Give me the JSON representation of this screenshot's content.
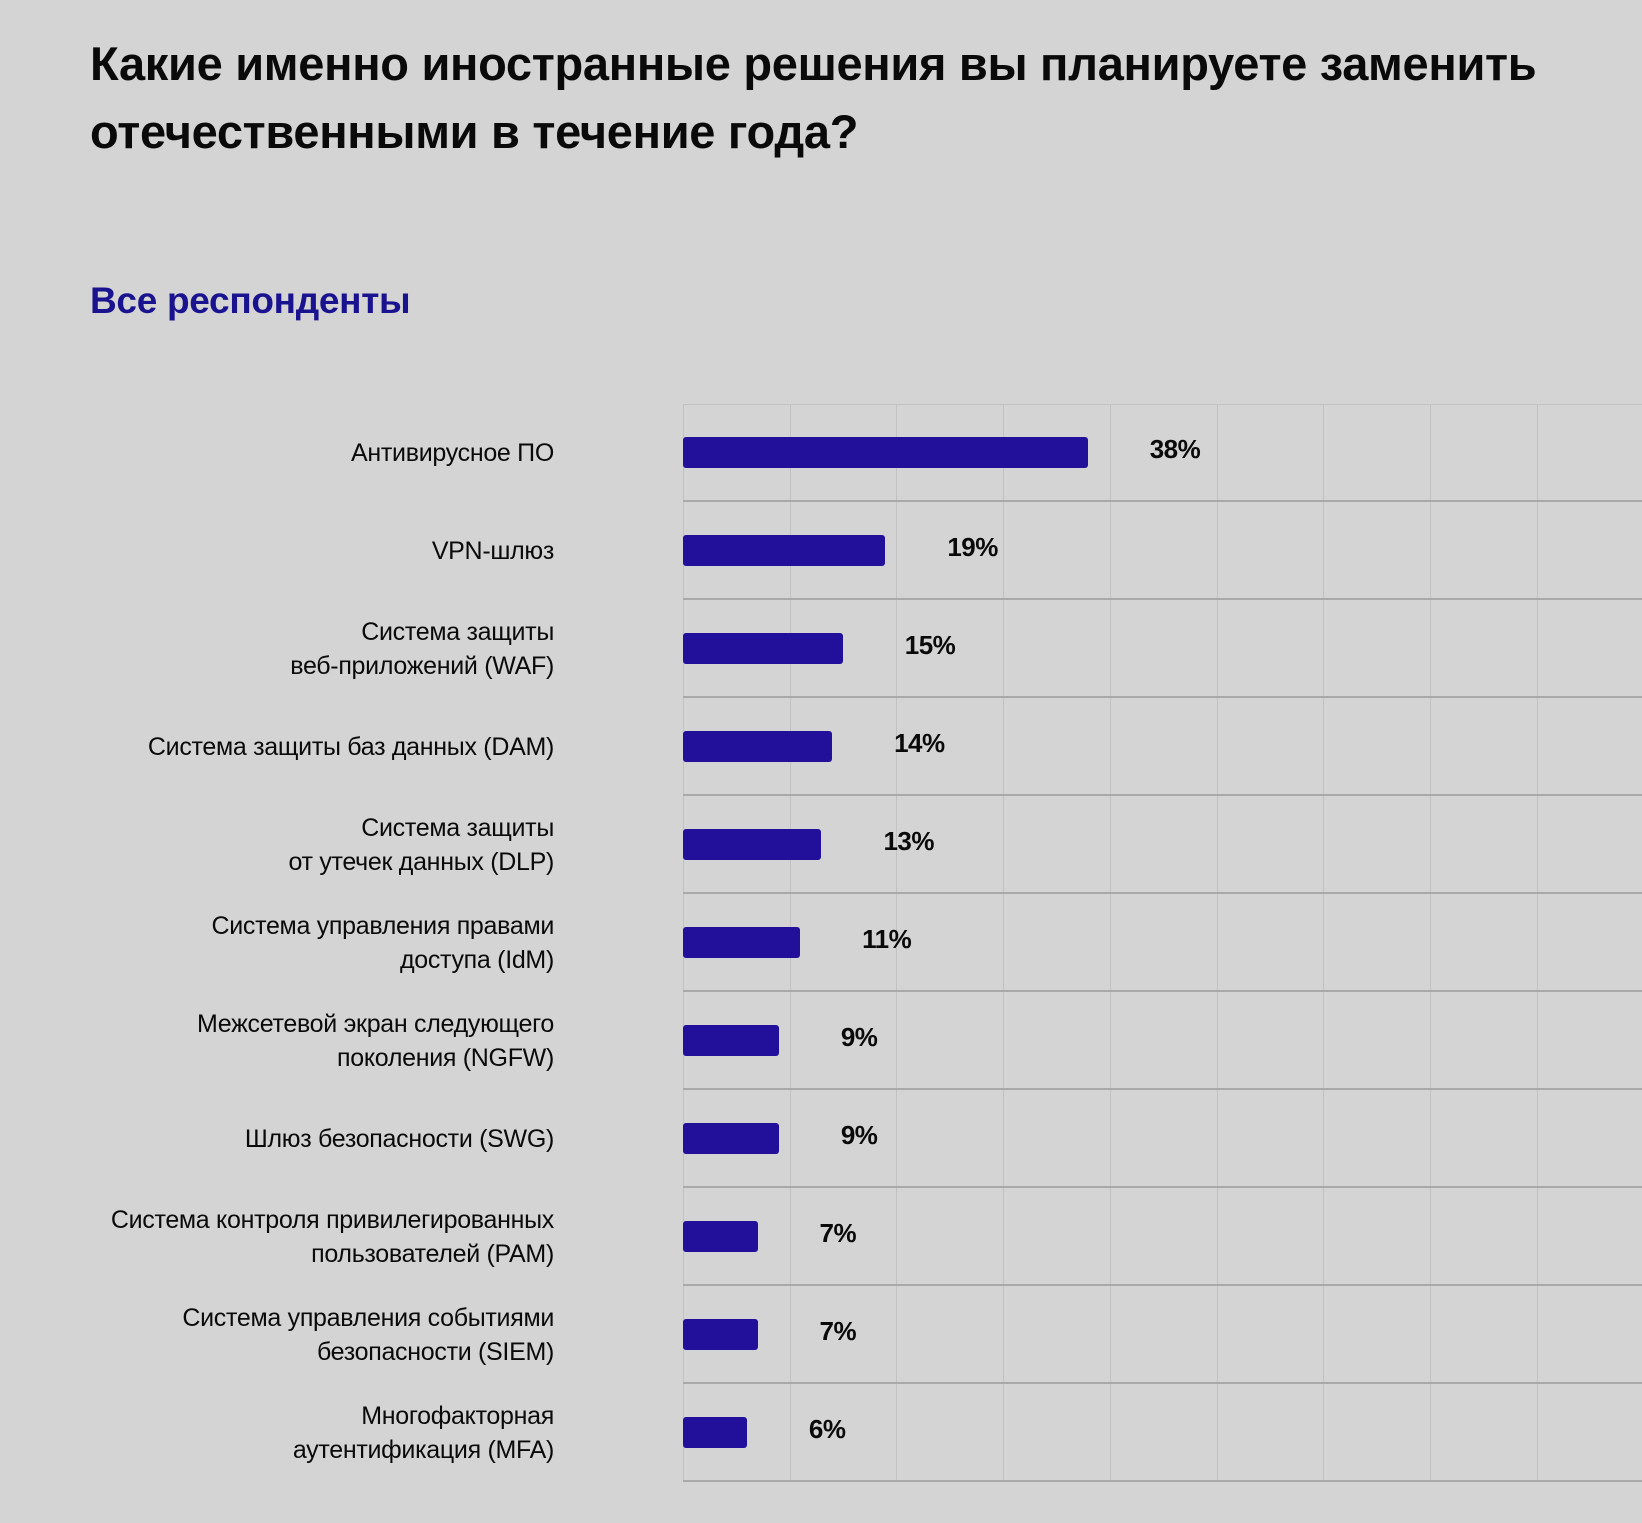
{
  "title": "Какие именно иностранные решения вы планируете заменить отечественными в течение года?",
  "subtitle": "Все респонденты",
  "colors": {
    "bar": "#22109a",
    "subtitle": "#1a1390",
    "background": "#d4d4d4"
  },
  "chart_data": {
    "type": "bar",
    "orientation": "horizontal",
    "title": "Какие именно иностранные решения вы планируете заменить отечественными в течение года?",
    "subtitle": "Все респонденты",
    "categories": [
      "Антивирусное ПО",
      "VPN-шлюз",
      "Система защиты веб-приложений (WAF)",
      "Система защиты баз данных (DAM)",
      "Система защиты от утечек данных (DLP)",
      "Система управления правами доступа (IdM)",
      "Межсетевой экран следующего поколения (NGFW)",
      "Шлюз безопасности (SWG)",
      "Система контроля привилегированных пользователей (PAM)",
      "Система управления событиями безопасности (SIEM)",
      "Многофакторная аутентификация (MFA)"
    ],
    "values": [
      38,
      19,
      15,
      14,
      13,
      11,
      9,
      9,
      7,
      7,
      6
    ],
    "unit": "%",
    "xlabel": "",
    "ylabel": "",
    "grid": true,
    "legend": null
  },
  "rows": [
    {
      "line1": "Антивирусное ПО",
      "line2": "",
      "value": 38,
      "label": "38%"
    },
    {
      "line1": "VPN-шлюз",
      "line2": "",
      "value": 19,
      "label": "19%"
    },
    {
      "line1": "Система защиты",
      "line2": "веб-приложений (WAF)",
      "value": 15,
      "label": "15%"
    },
    {
      "line1": "Система защиты баз данных (DAM)",
      "line2": "",
      "value": 14,
      "label": "14%"
    },
    {
      "line1": "Система защиты",
      "line2": "от утечек данных (DLP)",
      "value": 13,
      "label": "13%"
    },
    {
      "line1": "Система управления правами",
      "line2": "доступа (IdM)",
      "value": 11,
      "label": "11%"
    },
    {
      "line1": "Межсетевой экран следующего",
      "line2": "поколения (NGFW)",
      "value": 9,
      "label": "9%"
    },
    {
      "line1": "Шлюз безопасности (SWG)",
      "line2": "",
      "value": 9,
      "label": "9%"
    },
    {
      "line1": "Система контроля привилегированных",
      "line2": "пользователей (PAM)",
      "value": 7,
      "label": "7%"
    },
    {
      "line1": "Система управления событиями",
      "line2": "безопасности (SIEM)",
      "value": 7,
      "label": "7%"
    },
    {
      "line1": "Многофакторная",
      "line2": "аутентификация (MFA)",
      "value": 6,
      "label": "6%"
    }
  ]
}
